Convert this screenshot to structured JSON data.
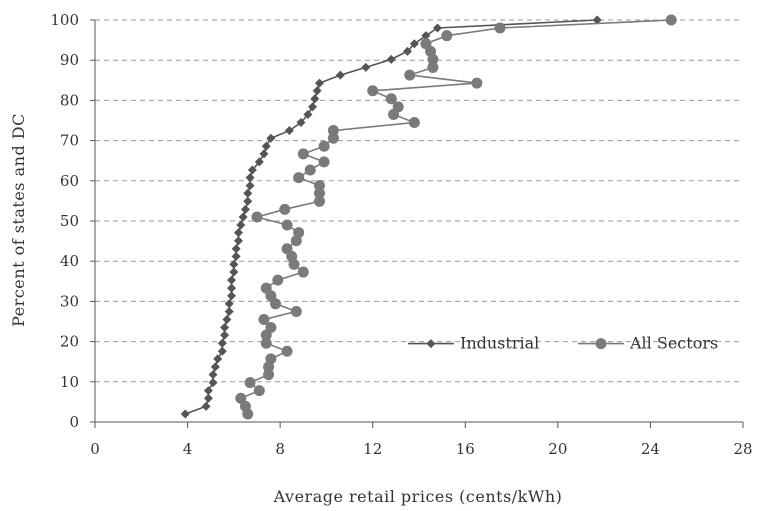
{
  "chart_data": {
    "type": "line",
    "xlabel": "Average retail prices (cents/kWh)",
    "ylabel": "Percent of states and DC",
    "xlim": [
      0,
      28
    ],
    "ylim": [
      0,
      100
    ],
    "xticks": [
      "0",
      "4",
      "8",
      "12",
      "16",
      "20",
      "24",
      "28"
    ],
    "yticks": [
      "0",
      "10",
      "20",
      "30",
      "40",
      "50",
      "60",
      "70",
      "80",
      "90",
      "100"
    ],
    "grid": "horizontal dashed",
    "legend": "bottom-right",
    "series": [
      {
        "name": "Industrial",
        "color": "#555555",
        "marker": "diamond",
        "points": [
          [
            3.9,
            2.0
          ],
          [
            4.8,
            3.9
          ],
          [
            4.9,
            5.9
          ],
          [
            4.9,
            7.8
          ],
          [
            5.1,
            9.8
          ],
          [
            5.1,
            11.8
          ],
          [
            5.2,
            13.7
          ],
          [
            5.3,
            15.7
          ],
          [
            5.5,
            17.6
          ],
          [
            5.5,
            19.6
          ],
          [
            5.6,
            21.6
          ],
          [
            5.6,
            23.5
          ],
          [
            5.7,
            25.5
          ],
          [
            5.8,
            27.5
          ],
          [
            5.8,
            29.4
          ],
          [
            5.9,
            31.4
          ],
          [
            5.9,
            33.3
          ],
          [
            5.9,
            35.3
          ],
          [
            6.0,
            37.3
          ],
          [
            6.0,
            39.2
          ],
          [
            6.1,
            41.2
          ],
          [
            6.1,
            43.1
          ],
          [
            6.2,
            45.1
          ],
          [
            6.2,
            47.1
          ],
          [
            6.3,
            49.0
          ],
          [
            6.4,
            51.0
          ],
          [
            6.5,
            52.9
          ],
          [
            6.6,
            54.9
          ],
          [
            6.6,
            56.9
          ],
          [
            6.7,
            58.8
          ],
          [
            6.7,
            60.8
          ],
          [
            6.8,
            62.7
          ],
          [
            7.1,
            64.7
          ],
          [
            7.3,
            66.7
          ],
          [
            7.4,
            68.6
          ],
          [
            7.6,
            70.6
          ],
          [
            8.4,
            72.5
          ],
          [
            8.9,
            74.5
          ],
          [
            9.2,
            76.5
          ],
          [
            9.4,
            78.4
          ],
          [
            9.5,
            80.4
          ],
          [
            9.6,
            82.4
          ],
          [
            9.7,
            84.3
          ],
          [
            10.6,
            86.3
          ],
          [
            11.7,
            88.2
          ],
          [
            12.8,
            90.2
          ],
          [
            13.5,
            92.2
          ],
          [
            13.8,
            94.1
          ],
          [
            14.3,
            96.1
          ],
          [
            14.8,
            98.0
          ],
          [
            21.7,
            100.0
          ]
        ]
      },
      {
        "name": "All Sectors",
        "color": "#7a7a7a",
        "marker": "circle",
        "points": [
          [
            6.6,
            2.0
          ],
          [
            6.5,
            3.9
          ],
          [
            6.3,
            5.9
          ],
          [
            7.1,
            7.8
          ],
          [
            6.7,
            9.8
          ],
          [
            7.5,
            11.8
          ],
          [
            7.5,
            13.7
          ],
          [
            7.6,
            15.7
          ],
          [
            8.3,
            17.6
          ],
          [
            7.4,
            19.6
          ],
          [
            7.4,
            21.6
          ],
          [
            7.6,
            23.5
          ],
          [
            7.3,
            25.5
          ],
          [
            8.7,
            27.5
          ],
          [
            7.8,
            29.4
          ],
          [
            7.6,
            31.4
          ],
          [
            7.4,
            33.3
          ],
          [
            7.9,
            35.3
          ],
          [
            9.0,
            37.3
          ],
          [
            8.6,
            39.2
          ],
          [
            8.5,
            41.2
          ],
          [
            8.3,
            43.1
          ],
          [
            8.7,
            45.1
          ],
          [
            8.8,
            47.1
          ],
          [
            8.3,
            49.0
          ],
          [
            7.0,
            51.0
          ],
          [
            8.2,
            52.9
          ],
          [
            9.7,
            54.9
          ],
          [
            9.7,
            56.9
          ],
          [
            9.7,
            58.8
          ],
          [
            8.8,
            60.8
          ],
          [
            9.3,
            62.7
          ],
          [
            9.9,
            64.7
          ],
          [
            9.0,
            66.7
          ],
          [
            9.9,
            68.6
          ],
          [
            10.3,
            70.6
          ],
          [
            10.3,
            72.5
          ],
          [
            13.8,
            74.5
          ],
          [
            12.9,
            76.5
          ],
          [
            13.1,
            78.4
          ],
          [
            12.8,
            80.4
          ],
          [
            12.0,
            82.4
          ],
          [
            16.5,
            84.3
          ],
          [
            13.6,
            86.3
          ],
          [
            14.6,
            88.2
          ],
          [
            14.6,
            90.2
          ],
          [
            14.5,
            92.2
          ],
          [
            14.3,
            94.1
          ],
          [
            15.2,
            96.1
          ],
          [
            17.5,
            98.0
          ],
          [
            24.9,
            100.0
          ]
        ]
      }
    ]
  }
}
